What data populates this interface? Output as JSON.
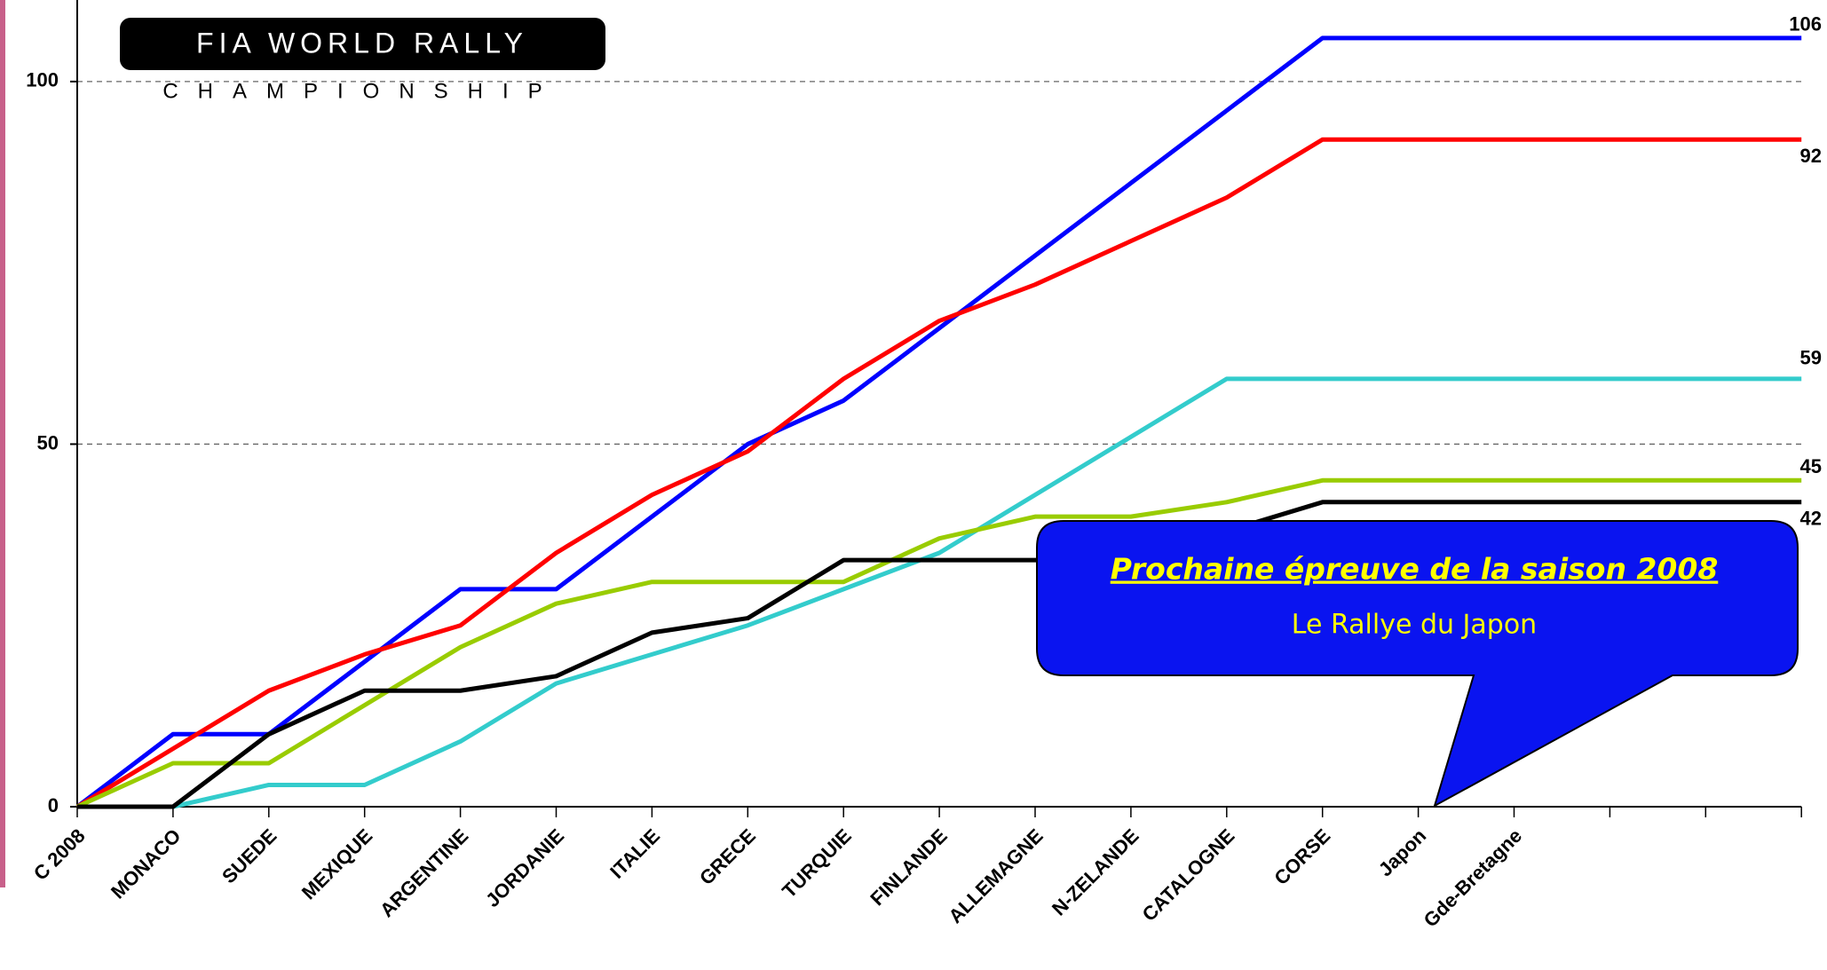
{
  "logo": {
    "line1": "FIA WORLD RALLY",
    "line2": "CHAMPIONSHIP"
  },
  "callout": {
    "title": "Prochaine épreuve de la saison 2008",
    "text": "Le Rallye du Japon"
  },
  "chart_data": {
    "type": "line",
    "categories": [
      "C 2008",
      "MONACO",
      "SUEDE",
      "MEXIQUE",
      "ARGENTINE",
      "JORDANIE",
      "ITALIE",
      "GRECE",
      "TURQUIE",
      "FINLANDE",
      "ALLEMAGNE",
      "N-ZELANDE",
      "CATALOGNE",
      "CORSE",
      "Japon",
      "Gde-Bretagne",
      null,
      null,
      null
    ],
    "series": [
      {
        "color": "#0000ff",
        "values": [
          0,
          10,
          10,
          20,
          30,
          30,
          40,
          50,
          56,
          66,
          76,
          86,
          96,
          106,
          106,
          106,
          106,
          106,
          106
        ],
        "value_labels": [
          null,
          null,
          null,
          null,
          null,
          null,
          null,
          null,
          null,
          null,
          null,
          null,
          null,
          null,
          null,
          null,
          null,
          null,
          "106"
        ]
      },
      {
        "color": "#ff0000",
        "values": [
          0,
          8,
          16,
          21,
          25,
          35,
          43,
          49,
          59,
          67,
          72,
          78,
          84,
          92,
          92,
          92,
          92,
          92,
          92
        ],
        "value_labels": [
          null,
          null,
          null,
          null,
          null,
          null,
          null,
          null,
          null,
          null,
          null,
          null,
          null,
          null,
          null,
          null,
          null,
          null,
          "92"
        ]
      },
      {
        "color": "#33cccc",
        "values": [
          0,
          0,
          3,
          3,
          9,
          17,
          21,
          25,
          30,
          35,
          43,
          51,
          59,
          59,
          59,
          59,
          59,
          59,
          59
        ],
        "value_labels": [
          null,
          null,
          null,
          null,
          null,
          null,
          null,
          null,
          null,
          null,
          null,
          null,
          null,
          null,
          null,
          null,
          null,
          null,
          "59"
        ]
      },
      {
        "color": "#99cc00",
        "values": [
          0,
          6,
          6,
          14,
          22,
          28,
          31,
          31,
          31,
          37,
          40,
          40,
          42,
          45,
          45,
          45,
          45,
          45,
          45
        ],
        "value_labels": [
          null,
          null,
          null,
          null,
          null,
          null,
          null,
          null,
          null,
          null,
          null,
          null,
          null,
          null,
          null,
          null,
          null,
          null,
          "45"
        ]
      },
      {
        "color": "#000000",
        "values": [
          0,
          0,
          10,
          16,
          16,
          18,
          24,
          26,
          34,
          34,
          34,
          34,
          38,
          42,
          42,
          42,
          42,
          42,
          42
        ],
        "value_labels": [
          null,
          null,
          null,
          null,
          null,
          null,
          null,
          null,
          null,
          null,
          null,
          null,
          null,
          null,
          null,
          null,
          null,
          null,
          "42"
        ]
      }
    ],
    "ylim": [
      0,
      111
    ],
    "yticks": [
      0,
      50,
      100
    ],
    "grid": true
  }
}
